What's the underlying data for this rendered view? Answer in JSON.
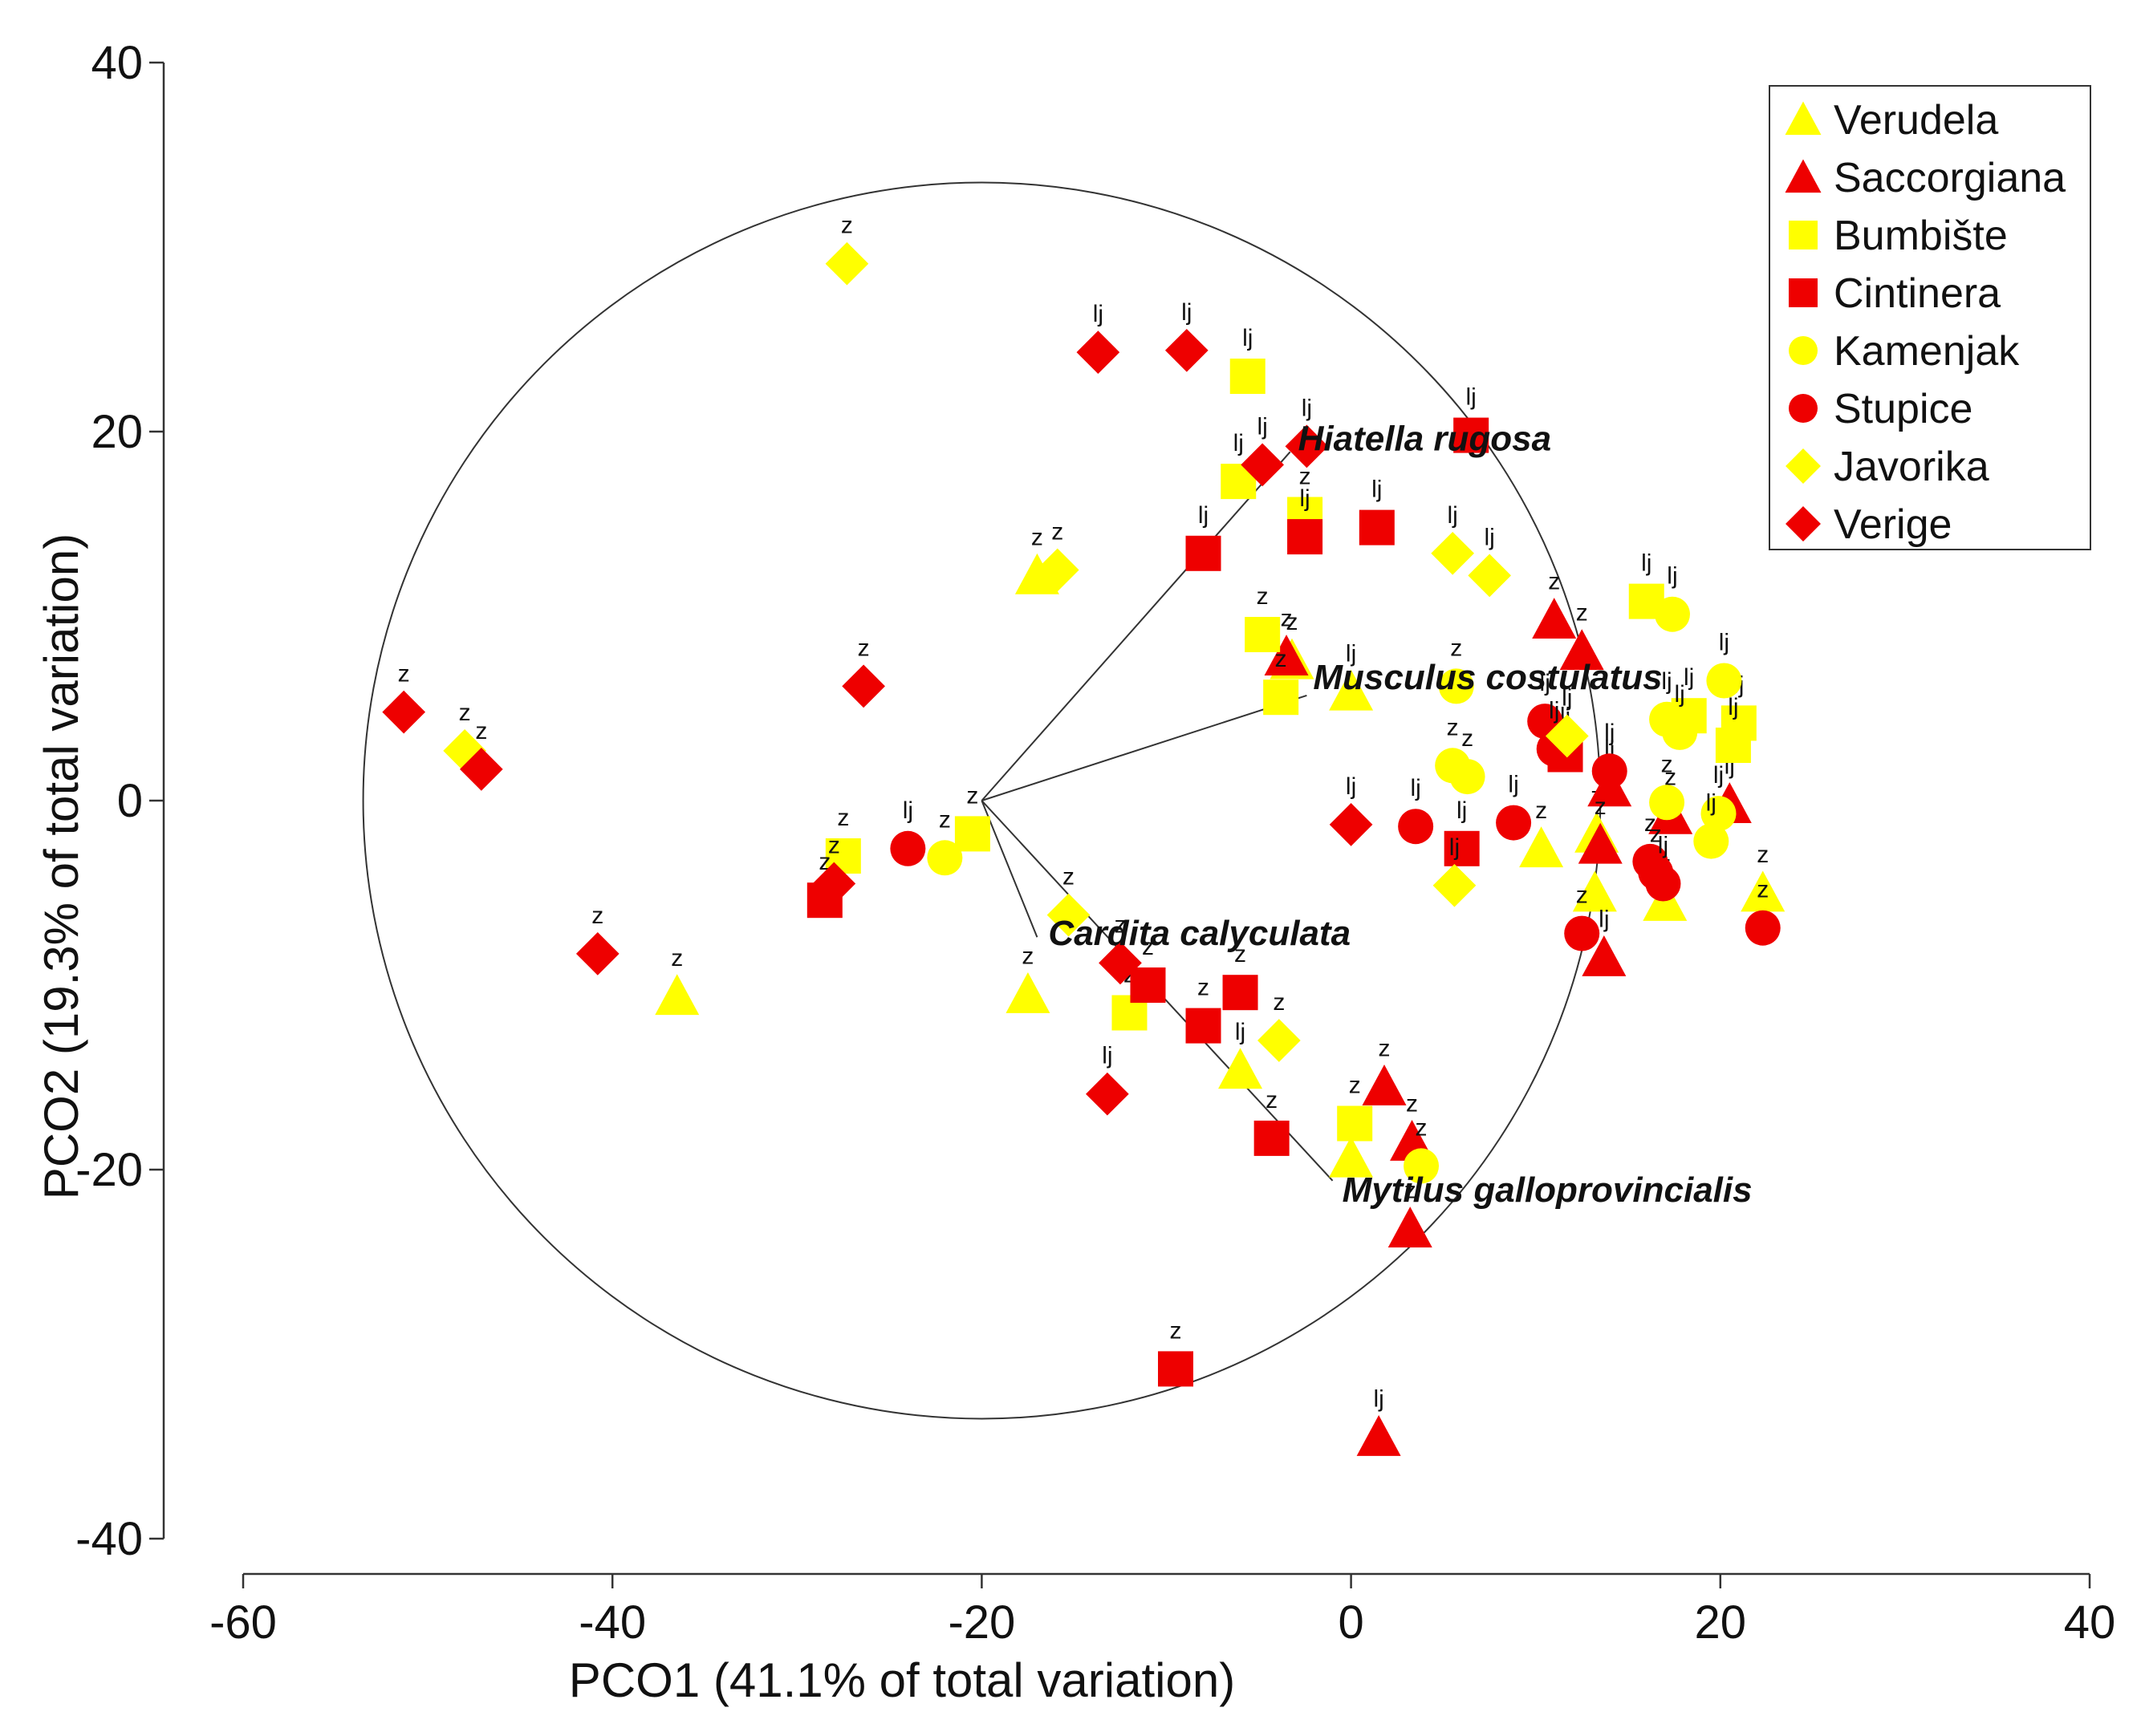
{
  "chart_data": {
    "type": "scatter",
    "title": "",
    "xlabel": "PCO1 (41.1% of total variation)",
    "ylabel": "PCO2 (19.3% of total variation)",
    "xlim": [
      -60,
      40
    ],
    "ylim": [
      -40,
      40
    ],
    "xticks": [
      -60,
      -40,
      -20,
      0,
      20,
      40
    ],
    "yticks": [
      -40,
      -20,
      0,
      20,
      40
    ],
    "legend_position": "top-right",
    "colors": {
      "yellow": "#ffff00",
      "red": "#ee0000"
    },
    "correlation_circle": {
      "center": [
        -20,
        0
      ],
      "radius": 33.5
    },
    "vectors": [
      {
        "label": "Hiatella rugosa",
        "end": [
          -3.3,
          18.9
        ]
      },
      {
        "label": "Musculus costulatus",
        "end": [
          -2.4,
          5.7
        ]
      },
      {
        "label": "Cardita calyculata",
        "end": [
          -17,
          -7.4
        ]
      },
      {
        "label": "Mytilus galloprovincialis",
        "end": [
          -1,
          -20.6
        ]
      }
    ],
    "series": [
      {
        "name": "Verudela",
        "marker": "triangle",
        "color": "#ffff00",
        "points": [
          {
            "x": -17,
            "y": 12.2,
            "label": "z"
          },
          {
            "x": -3.2,
            "y": 7.6,
            "label": "z"
          },
          {
            "x": 0,
            "y": 5.9,
            "label": "lj"
          },
          {
            "x": -17.5,
            "y": -10.5,
            "label": "z"
          },
          {
            "x": -36.5,
            "y": -10.6,
            "label": "z"
          },
          {
            "x": -6,
            "y": -14.6,
            "label": "lj"
          },
          {
            "x": 0,
            "y": -19.4,
            "label": "z"
          },
          {
            "x": 10.3,
            "y": -2.6,
            "label": "z"
          },
          {
            "x": 13.3,
            "y": -1.8,
            "label": "z"
          },
          {
            "x": 13.2,
            "y": -5,
            "label": "z"
          },
          {
            "x": 17,
            "y": -5.5,
            "label": "z"
          },
          {
            "x": 22.3,
            "y": -5,
            "label": "z"
          }
        ]
      },
      {
        "name": "Saccorgiana",
        "marker": "triangle",
        "color": "#ee0000",
        "points": [
          {
            "x": -3.5,
            "y": 7.8,
            "label": "z"
          },
          {
            "x": 11,
            "y": 9.8,
            "label": "z"
          },
          {
            "x": 12.5,
            "y": 8.1,
            "label": "z"
          },
          {
            "x": 14,
            "y": 0.7,
            "label": "lj"
          },
          {
            "x": 13.5,
            "y": -2.4,
            "label": "z"
          },
          {
            "x": 17.3,
            "y": -0.8,
            "label": "z"
          },
          {
            "x": 20.5,
            "y": -0.2,
            "label": "lj"
          },
          {
            "x": 13.7,
            "y": -8.5,
            "label": "lj"
          },
          {
            "x": 1.8,
            "y": -15.5,
            "label": "z"
          },
          {
            "x": 3.3,
            "y": -18.5,
            "label": "z"
          },
          {
            "x": 3.2,
            "y": -23.2,
            "label": "z"
          },
          {
            "x": 1.5,
            "y": -34.5,
            "label": "lj"
          }
        ]
      },
      {
        "name": "Bumbište",
        "marker": "square",
        "color": "#ffff00",
        "points": [
          {
            "x": -5.6,
            "y": 23,
            "label": "lj"
          },
          {
            "x": -6.1,
            "y": 17.3,
            "label": "lj"
          },
          {
            "x": -2.5,
            "y": 15.5,
            "label": "z"
          },
          {
            "x": -4.8,
            "y": 9,
            "label": "z"
          },
          {
            "x": -3.8,
            "y": 5.6,
            "label": "z"
          },
          {
            "x": -20.5,
            "y": -1.8,
            "label": "z"
          },
          {
            "x": -27.5,
            "y": -3,
            "label": "z"
          },
          {
            "x": -12,
            "y": -11.5,
            "label": "z"
          },
          {
            "x": 0.2,
            "y": -17.5,
            "label": "z"
          },
          {
            "x": 16,
            "y": 10.8,
            "label": "lj"
          },
          {
            "x": 18.3,
            "y": 4.6,
            "label": "lj"
          },
          {
            "x": 21,
            "y": 4.2,
            "label": "lj"
          },
          {
            "x": 20.7,
            "y": 3,
            "label": "lj"
          }
        ]
      },
      {
        "name": "Cintinera",
        "marker": "square",
        "color": "#ee0000",
        "points": [
          {
            "x": 6.5,
            "y": 19.8,
            "label": "lj"
          },
          {
            "x": 1.4,
            "y": 14.8,
            "label": "lj"
          },
          {
            "x": -8,
            "y": 13.4,
            "label": "lj"
          },
          {
            "x": -2.5,
            "y": 14.3,
            "label": "lj"
          },
          {
            "x": 11.6,
            "y": 2.5,
            "label": "lj"
          },
          {
            "x": 6,
            "y": -2.6,
            "label": "lj"
          },
          {
            "x": -28.5,
            "y": -5.4,
            "label": "z"
          },
          {
            "x": -11,
            "y": -10,
            "label": "z"
          },
          {
            "x": -8,
            "y": -12.2,
            "label": "z"
          },
          {
            "x": -6,
            "y": -10.4,
            "label": "z"
          },
          {
            "x": -4.3,
            "y": -18.3,
            "label": "z"
          },
          {
            "x": -9.5,
            "y": -30.8,
            "label": "z"
          }
        ]
      },
      {
        "name": "Kamenjak",
        "marker": "circle",
        "color": "#ffff00",
        "points": [
          {
            "x": 5.7,
            "y": 6.2,
            "label": "z"
          },
          {
            "x": 5.5,
            "y": 1.9,
            "label": "z"
          },
          {
            "x": 6.3,
            "y": 1.3,
            "label": "z"
          },
          {
            "x": -22,
            "y": -3.1,
            "label": "z"
          },
          {
            "x": 3.8,
            "y": -19.8,
            "label": "z"
          },
          {
            "x": 17.4,
            "y": 10.1,
            "label": "lj"
          },
          {
            "x": 20.2,
            "y": 6.5,
            "label": "lj"
          },
          {
            "x": 17.1,
            "y": 4.4,
            "label": "lj"
          },
          {
            "x": 17.8,
            "y": 3.7,
            "label": "lj"
          },
          {
            "x": 17.1,
            "y": -0.1,
            "label": "z"
          },
          {
            "x": 19.9,
            "y": -0.7,
            "label": "lj"
          },
          {
            "x": 19.5,
            "y": -2.2,
            "label": "lj"
          }
        ]
      },
      {
        "name": "Stupice",
        "marker": "circle",
        "color": "#ee0000",
        "points": [
          {
            "x": 10.5,
            "y": 4.3,
            "label": "lj"
          },
          {
            "x": 11,
            "y": 2.8,
            "label": "lj"
          },
          {
            "x": 14,
            "y": 1.6,
            "label": "lj"
          },
          {
            "x": 8.8,
            "y": -1.2,
            "label": "lj"
          },
          {
            "x": 3.5,
            "y": -1.4,
            "label": "lj"
          },
          {
            "x": -24,
            "y": -2.6,
            "label": "lj"
          },
          {
            "x": 16.2,
            "y": -3.3,
            "label": "z"
          },
          {
            "x": 16.5,
            "y": -3.9,
            "label": "z"
          },
          {
            "x": 16.9,
            "y": -4.5,
            "label": "lj"
          },
          {
            "x": 12.5,
            "y": -7.2,
            "label": "z"
          },
          {
            "x": 22.3,
            "y": -6.9,
            "label": "z"
          }
        ]
      },
      {
        "name": "Javorika",
        "marker": "diamond",
        "color": "#ffff00",
        "points": [
          {
            "x": -27.3,
            "y": 29.1,
            "label": "z"
          },
          {
            "x": -15.9,
            "y": 12.5,
            "label": "z"
          },
          {
            "x": 5.5,
            "y": 13.4,
            "label": "lj"
          },
          {
            "x": 7.5,
            "y": 12.2,
            "label": "lj"
          },
          {
            "x": 11.7,
            "y": 3.5,
            "label": "lj"
          },
          {
            "x": -48,
            "y": 2.7,
            "label": "z"
          },
          {
            "x": -15.3,
            "y": -6.2,
            "label": "z"
          },
          {
            "x": -3.9,
            "y": -13,
            "label": "z"
          },
          {
            "x": 5.6,
            "y": -4.6,
            "label": "lj"
          }
        ]
      },
      {
        "name": "Verige",
        "marker": "diamond",
        "color": "#ee0000",
        "points": [
          {
            "x": -13.7,
            "y": 24.3,
            "label": "lj"
          },
          {
            "x": -8.9,
            "y": 24.4,
            "label": "lj"
          },
          {
            "x": -2.4,
            "y": 19.2,
            "label": "lj"
          },
          {
            "x": -4.8,
            "y": 18.2,
            "label": "lj"
          },
          {
            "x": -26.4,
            "y": 6.2,
            "label": "z"
          },
          {
            "x": -51.3,
            "y": 4.8,
            "label": "z"
          },
          {
            "x": -47.1,
            "y": 1.7,
            "label": "z"
          },
          {
            "x": 0,
            "y": -1.3,
            "label": "lj"
          },
          {
            "x": -28,
            "y": -4.5,
            "label": "z"
          },
          {
            "x": -40.8,
            "y": -8.3,
            "label": "z"
          },
          {
            "x": -12.5,
            "y": -8.8,
            "label": "z"
          },
          {
            "x": -13.2,
            "y": -15.9,
            "label": "lj"
          }
        ]
      }
    ]
  }
}
